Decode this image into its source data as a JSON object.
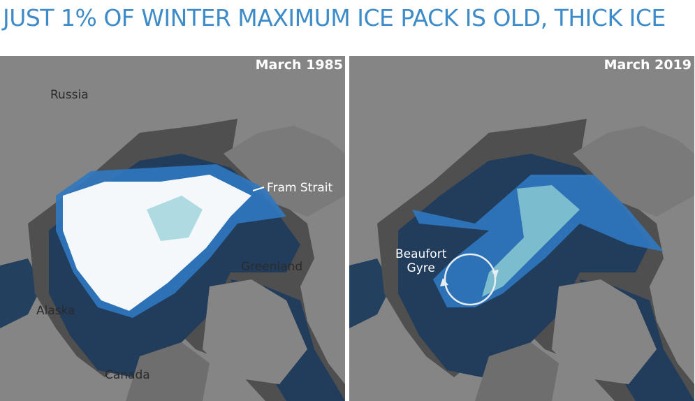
{
  "title": "JUST 1% OF WINTER MAXIMUM ICE PACK IS OLD, THICK ICE",
  "panels": [
    {
      "date": "March 1985",
      "labels": [
        "Russia",
        "Fram Strait",
        "Greenland",
        "Alaska",
        "Canada"
      ]
    },
    {
      "date": "March 2019",
      "labels": [
        "Beaufort\nGyre"
      ]
    }
  ]
}
